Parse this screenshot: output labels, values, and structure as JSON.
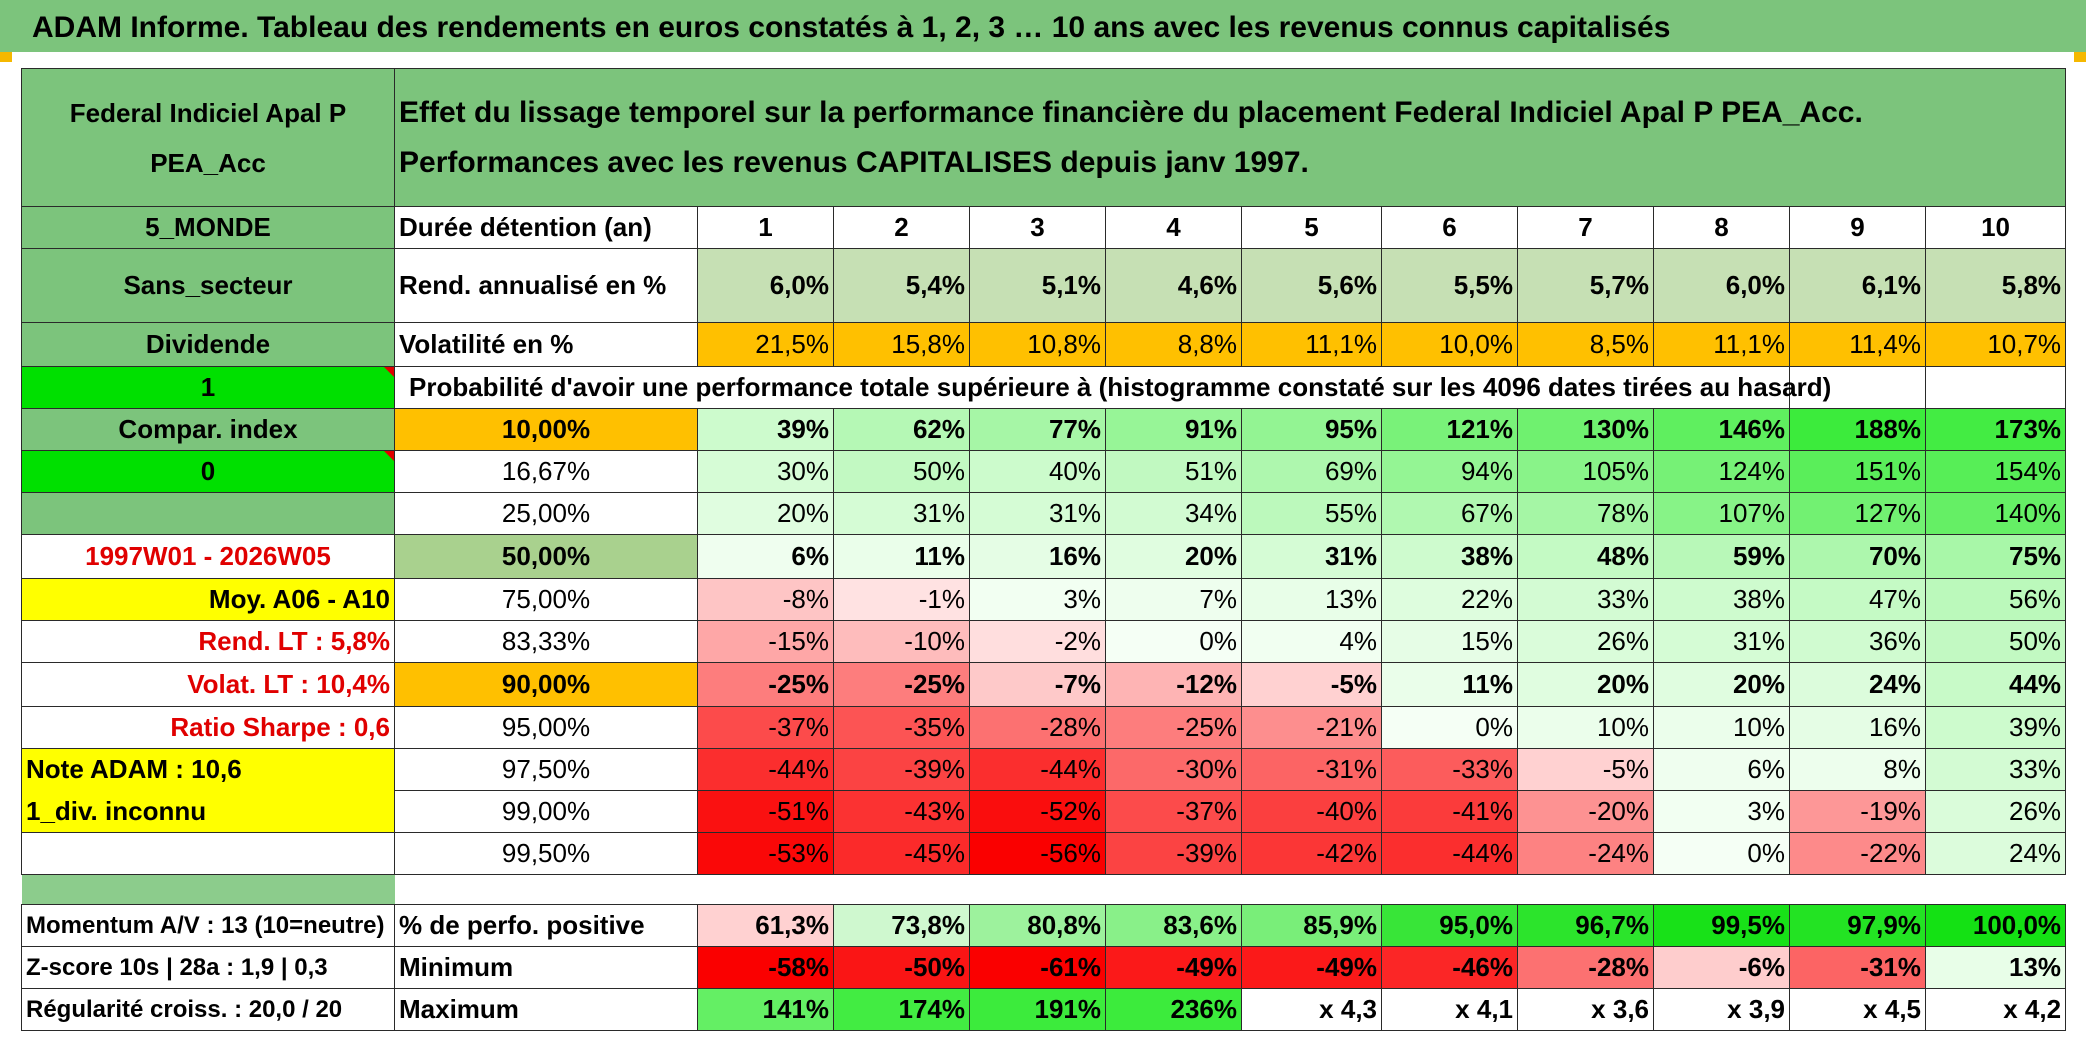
{
  "title": "ADAM Informe. Tableau des rendements en euros constatés à 1, 2, 3 … 10 ans avec les revenus connus capitalisés",
  "fund_name": "Federal Indiciel Apal P PEA_Acc",
  "description": "Effet du lissage temporel sur la performance financière du placement Federal Indiciel Apal P PEA_Acc. Performances avec les revenus CAPITALISES depuis janv 1997.",
  "colors": {
    "header_green": "#7cc47c",
    "bright_green": "#00e000",
    "yellow": "#ffff00",
    "orange": "#ffc000",
    "red_text": "#e00000"
  },
  "left_panel": {
    "region": "5_MONDE",
    "sector": "Sans_secteur",
    "dividend": "Dividende",
    "dividend_value": "1",
    "compar_index": "Compar. index",
    "compar_value": "0",
    "period": "1997W01 - 2026W05",
    "moy": "Moy. A06 - A10",
    "rend_lt": "Rend. LT :   5,8%",
    "volat_lt": "Volat. LT :   10,4%",
    "ratio_sharpe": "Ratio Sharpe :   0,6",
    "note_adam": "Note ADAM : 10,6",
    "div_inconnu": "1_div. inconnu",
    "momentum": "Momentum A/V : 13 (10=neutre)",
    "zscore": "Z-score 10s | 28a : 1,9 | 0,3",
    "regularite": "Régularité croiss. : 20,0 / 20"
  },
  "duration_label": "Durée détention (an)",
  "years": [
    "1",
    "2",
    "3",
    "4",
    "5",
    "6",
    "7",
    "8",
    "9",
    "10"
  ],
  "rend_label": "Rend. annualisé en %",
  "rend": [
    "6,0%",
    "5,4%",
    "5,1%",
    "4,6%",
    "5,6%",
    "5,5%",
    "5,7%",
    "6,0%",
    "6,1%",
    "5,8%"
  ],
  "vol_label": "Volatilité en %",
  "vol": [
    "21,5%",
    "15,8%",
    "10,8%",
    "8,8%",
    "11,1%",
    "10,0%",
    "8,5%",
    "11,1%",
    "11,4%",
    "10,7%"
  ],
  "probability_caption": "Probabilité d'avoir une performance totale supérieure à (histogramme constaté sur les 4096 dates tirées au hasard)",
  "prob_rows": [
    {
      "label": "10,00%",
      "values": [
        "39%",
        "62%",
        "77%",
        "91%",
        "95%",
        "121%",
        "130%",
        "146%",
        "188%",
        "173%"
      ]
    },
    {
      "label": "16,67%",
      "values": [
        "30%",
        "50%",
        "40%",
        "51%",
        "69%",
        "94%",
        "105%",
        "124%",
        "151%",
        "154%"
      ]
    },
    {
      "label": "25,00%",
      "values": [
        "20%",
        "31%",
        "31%",
        "34%",
        "55%",
        "67%",
        "78%",
        "107%",
        "127%",
        "140%"
      ]
    },
    {
      "label": "50,00%",
      "values": [
        "6%",
        "11%",
        "16%",
        "20%",
        "31%",
        "38%",
        "48%",
        "59%",
        "70%",
        "75%"
      ]
    },
    {
      "label": "75,00%",
      "values": [
        "-8%",
        "-1%",
        "3%",
        "7%",
        "13%",
        "22%",
        "33%",
        "38%",
        "47%",
        "56%"
      ]
    },
    {
      "label": "83,33%",
      "values": [
        "-15%",
        "-10%",
        "-2%",
        "0%",
        "4%",
        "15%",
        "26%",
        "31%",
        "36%",
        "50%"
      ]
    },
    {
      "label": "90,00%",
      "values": [
        "-25%",
        "-25%",
        "-7%",
        "-12%",
        "-5%",
        "11%",
        "20%",
        "20%",
        "24%",
        "44%"
      ]
    },
    {
      "label": "95,00%",
      "values": [
        "-37%",
        "-35%",
        "-28%",
        "-25%",
        "-21%",
        "0%",
        "10%",
        "10%",
        "16%",
        "39%"
      ]
    },
    {
      "label": "97,50%",
      "values": [
        "-44%",
        "-39%",
        "-44%",
        "-30%",
        "-31%",
        "-33%",
        "-5%",
        "6%",
        "8%",
        "33%"
      ]
    },
    {
      "label": "99,00%",
      "values": [
        "-51%",
        "-43%",
        "-52%",
        "-37%",
        "-40%",
        "-41%",
        "-20%",
        "3%",
        "-19%",
        "26%"
      ]
    },
    {
      "label": "99,50%",
      "values": [
        "-53%",
        "-45%",
        "-56%",
        "-39%",
        "-42%",
        "-44%",
        "-24%",
        "0%",
        "-22%",
        "24%"
      ]
    }
  ],
  "stats": [
    {
      "label": "% de perfo. positive",
      "values": [
        "61,3%",
        "73,8%",
        "80,8%",
        "83,6%",
        "85,9%",
        "95,0%",
        "96,7%",
        "99,5%",
        "97,9%",
        "100,0%"
      ]
    },
    {
      "label": "Minimum",
      "values": [
        "-58%",
        "-50%",
        "-61%",
        "-49%",
        "-49%",
        "-46%",
        "-28%",
        "-6%",
        "-31%",
        "13%"
      ]
    },
    {
      "label": "Maximum",
      "values": [
        "141%",
        "174%",
        "191%",
        "236%",
        "x 4,3",
        "x 4,1",
        "x 3,6",
        "x 3,9",
        "x 4,5",
        "x 4,2"
      ]
    }
  ]
}
